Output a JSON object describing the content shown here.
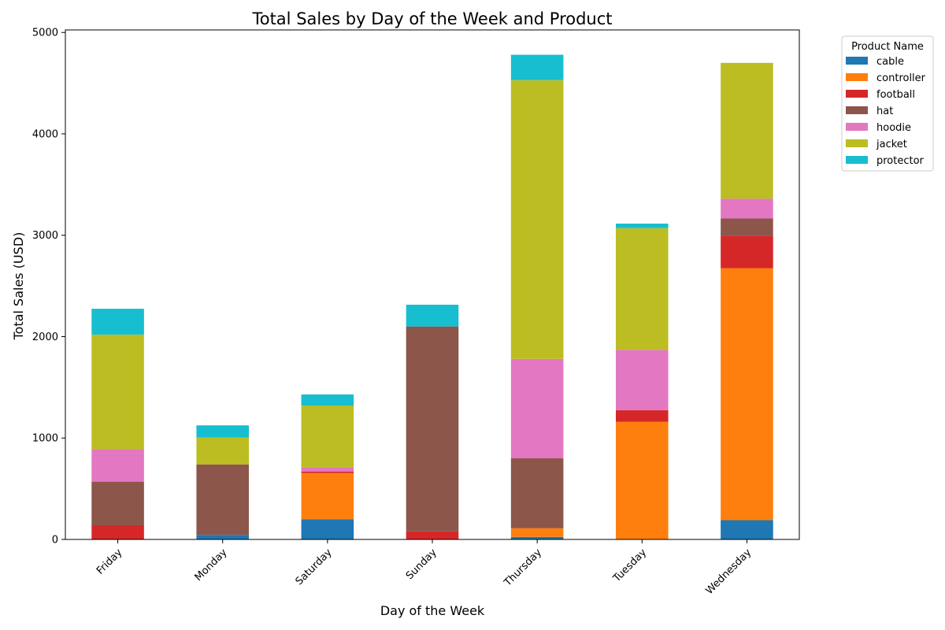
{
  "chart_data": {
    "type": "bar",
    "stacked": true,
    "title": "Total Sales by Day of the Week and Product",
    "xlabel": "Day of the Week",
    "ylabel": "Total Sales (USD)",
    "ylim": [
      0,
      5000
    ],
    "yticks": [
      0,
      1000,
      2000,
      3000,
      4000,
      5000
    ],
    "grid": false,
    "legend": {
      "title": "Product Name",
      "placement": "outside-top-right"
    },
    "categories": [
      "Friday",
      "Monday",
      "Saturday",
      "Sunday",
      "Thursday",
      "Tuesday",
      "Wednesday"
    ],
    "series": [
      {
        "name": "cable",
        "color": "#1f77b4",
        "values": [
          0,
          45,
          200,
          0,
          25,
          0,
          190
        ]
      },
      {
        "name": "controller",
        "color": "#ff7f0e",
        "values": [
          0,
          0,
          455,
          0,
          85,
          1160,
          2485
        ]
      },
      {
        "name": "football",
        "color": "#d62728",
        "values": [
          140,
          0,
          15,
          80,
          0,
          115,
          320
        ]
      },
      {
        "name": "hat",
        "color": "#8c564b",
        "values": [
          430,
          695,
          0,
          2020,
          690,
          0,
          170
        ]
      },
      {
        "name": "hoodie",
        "color": "#e377c2",
        "values": [
          320,
          0,
          40,
          0,
          980,
          595,
          195
        ]
      },
      {
        "name": "jacket",
        "color": "#bcbd22",
        "values": [
          1130,
          265,
          610,
          0,
          2750,
          1200,
          1340
        ]
      },
      {
        "name": "protector",
        "color": "#17becf",
        "values": [
          255,
          120,
          110,
          215,
          250,
          45,
          0
        ]
      }
    ]
  }
}
